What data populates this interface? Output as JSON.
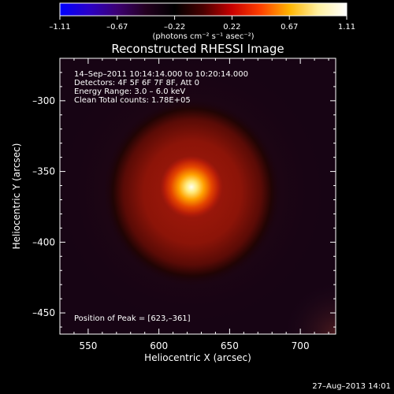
{
  "colorbar": {
    "ticks": [
      "-1.11",
      "-0.67",
      "-0.22",
      "0.22",
      "0.67",
      "1.11"
    ],
    "units_label": "(photons cm⁻² s⁻¹ asec⁻²)",
    "palette": [
      "#0000ff",
      "#2a00c8",
      "#3c0072",
      "#23001f",
      "#000000",
      "#4a0000",
      "#c80000",
      "#ff4000",
      "#ffb400",
      "#fff0a0",
      "#ffffff"
    ]
  },
  "image": {
    "title": "Reconstructed RHESSI Image",
    "info_lines": [
      "14–Sep–2011 10:14:14.000 to 10:20:14.000",
      "Detectors: 4F 5F 6F 7F 8F, Att 0",
      "Energy Range: 3.0 – 6.0 keV",
      "Clean     Total counts: 1.78E+05"
    ],
    "peak_label": "Position of Peak = [623,–361]",
    "peak_x": 623,
    "peak_y": -361
  },
  "axes": {
    "xlabel": "Heliocentric X (arcsec)",
    "ylabel": "Heliocentric Y (arcsec)",
    "xlim": [
      530,
      725
    ],
    "ylim": [
      -465,
      -270
    ],
    "x_ticks": [
      550,
      600,
      650,
      700
    ],
    "y_ticks": [
      -300,
      -350,
      -400,
      -450
    ],
    "x_tick_labels": [
      "550",
      "600",
      "650",
      "700"
    ],
    "y_tick_labels": [
      "–300",
      "–350",
      "–400",
      "–450"
    ]
  },
  "footer": {
    "timestamp": "27–Aug–2013 14:01"
  }
}
